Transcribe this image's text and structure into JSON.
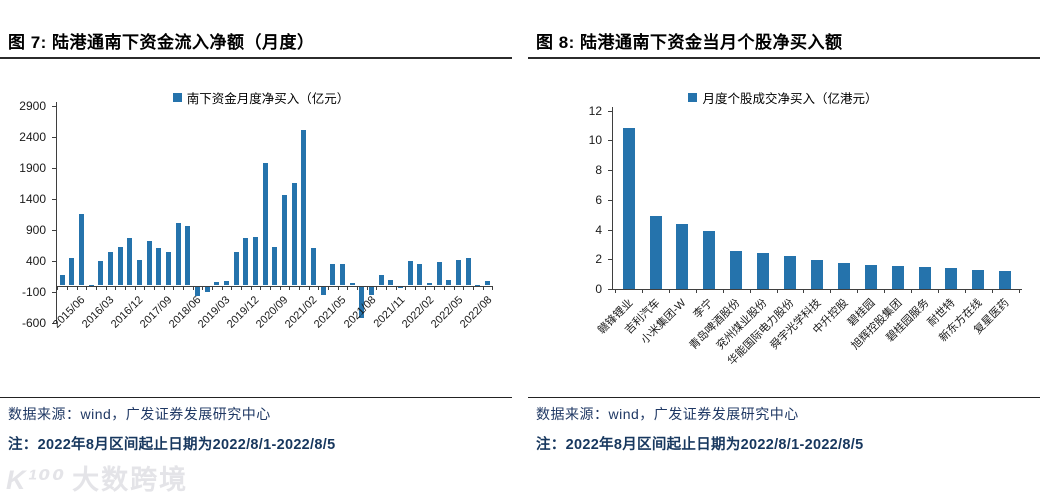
{
  "colors": {
    "bar": "#2573AC",
    "axis": "#3f3f3f",
    "footer_text": "#1F3864"
  },
  "watermark": {
    "logo": "K¹⁰⁰",
    "text": "大数跨境"
  },
  "figures": [
    {
      "title": "图 7: 陆港通南下资金流入净额（月度）",
      "legend": "南下资金月度净买入（亿元）",
      "source": "数据来源：wind，广发证券发展研究中心",
      "note": "注：2022年8月区间起止日期为2022/8/1-2022/8/5",
      "chart_data": {
        "type": "bar",
        "series_name": "南下资金月度净买入（亿元）",
        "unit": "亿元",
        "ylim": [
          -600,
          2900
        ],
        "yticks": [
          2900,
          2400,
          1900,
          1400,
          900,
          400,
          -100,
          -600
        ],
        "grid": false,
        "legend_position": "top",
        "tick_labels": [
          "",
          "",
          "2015/06",
          "",
          "",
          "2016/03",
          "",
          "",
          "2016/12",
          "",
          "",
          "2017/09",
          "",
          "",
          "2018/06",
          "",
          "",
          "2019/03",
          "",
          "",
          "2019/12",
          "",
          "",
          "2020/09",
          "",
          "",
          "2021/02",
          "",
          "",
          "2021/05",
          "",
          "",
          "2021/08",
          "",
          "",
          "2021/11",
          "",
          "",
          "2022/02",
          "",
          "",
          "2022/05",
          "",
          "",
          "2022/08"
        ],
        "values": [
          170,
          450,
          1150,
          15,
          390,
          545,
          615,
          770,
          415,
          715,
          600,
          540,
          1010,
          955,
          -160,
          -95,
          60,
          65,
          535,
          770,
          790,
          1980,
          620,
          1470,
          1650,
          2520,
          610,
          -140,
          345,
          350,
          45,
          -505,
          -140,
          170,
          90,
          -30,
          395,
          340,
          45,
          385,
          90,
          405,
          440,
          10,
          80
        ]
      }
    },
    {
      "title": "图 8: 陆港通南下资金当月个股净买入额",
      "legend": "月度个股成交净买入（亿港元）",
      "source": "数据来源：wind，广发证券发展研究中心",
      "note": "注：2022年8月区间起止日期为2022/8/1-2022/8/5",
      "chart_data": {
        "type": "bar",
        "series_name": "月度个股成交净买入（亿港元）",
        "unit": "亿港元",
        "ylim": [
          0,
          12
        ],
        "yticks": [
          12,
          10,
          8,
          6,
          4,
          2,
          0
        ],
        "grid": false,
        "legend_position": "top",
        "categories": [
          "赣锋锂业",
          "吉利汽车",
          "小米集团-W",
          "李宁",
          "青岛啤酒股份",
          "兖州煤业股份",
          "华能国际电力股份",
          "舜宇光学科技",
          "中升控股",
          "碧桂园",
          "旭辉控股集团",
          "碧桂园服务",
          "耐世特",
          "新东方在线",
          "复星医药"
        ],
        "values": [
          10.85,
          4.9,
          4.4,
          3.9,
          2.55,
          2.4,
          2.2,
          1.95,
          1.75,
          1.6,
          1.55,
          1.45,
          1.4,
          1.25,
          1.2
        ]
      }
    }
  ]
}
